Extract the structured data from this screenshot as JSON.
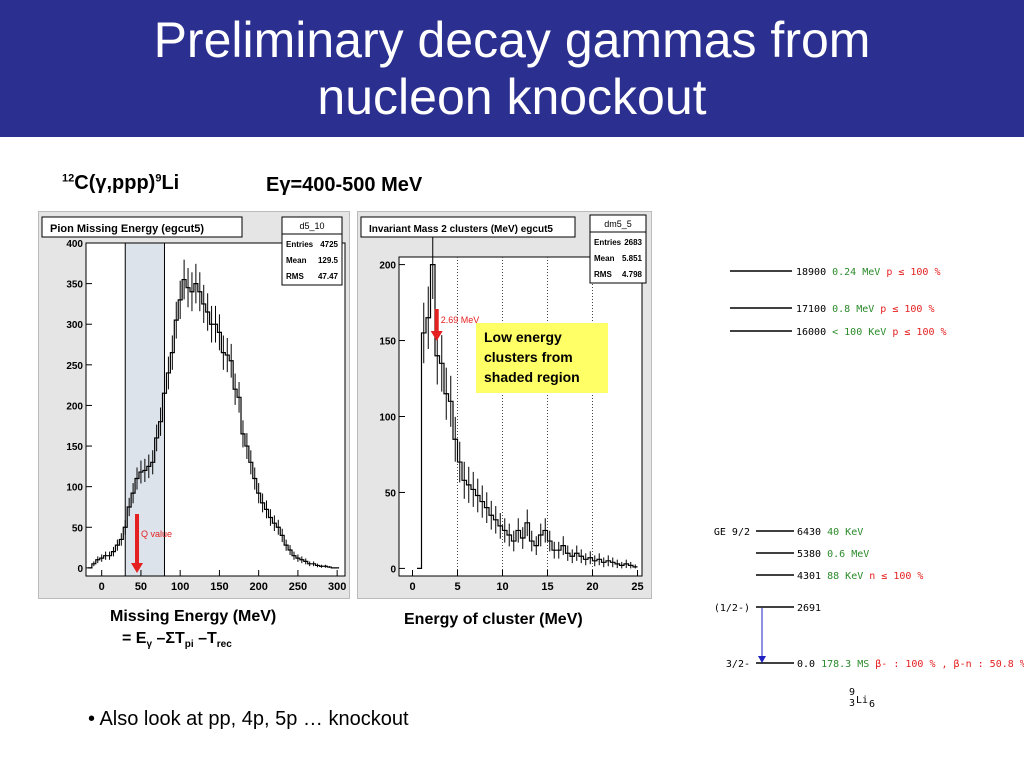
{
  "header": {
    "title_line1": "Preliminary decay gammas from",
    "title_line2": "nucleon knockout"
  },
  "reaction": {
    "sup1": "12",
    "text": "C(γ,ppp)",
    "sup2": "9",
    "text2": "Li"
  },
  "energy_range": "Eγ=400-500 MeV",
  "note_box": {
    "lines": [
      "Low energy",
      "clusters from",
      "shaded region"
    ]
  },
  "xlabel_left": {
    "line1": "Missing Energy (MeV)",
    "line2": "= Eγ –ΣTpi –Trec"
  },
  "xlabel_right": "Energy of cluster (MeV)",
  "bullet": "• Also look at pp, 4p, 5p … knockout",
  "colors": {
    "title_bg": "#2b2f8f",
    "arrow": "#e52020",
    "note_bg": "#ffff66",
    "green": "#2a8a2a",
    "red": "#e52020",
    "transition": "#2020c0"
  },
  "chart_data": [
    {
      "type": "line",
      "title": "Pion Missing Energy (egcut5)",
      "histogram_name": "d5_10",
      "stats": [
        {
          "k": "Entries",
          "v": "4725"
        },
        {
          "k": "Mean",
          "v": "129.5"
        },
        {
          "k": "RMS",
          "v": "47.47"
        }
      ],
      "xlim": [
        -20,
        310
      ],
      "ylim": [
        -10,
        400
      ],
      "xticks": [
        0,
        50,
        100,
        150,
        200,
        250,
        300
      ],
      "yticks": [
        0,
        50,
        100,
        150,
        200,
        250,
        300,
        350,
        400
      ],
      "shaded_region": [
        30,
        80
      ],
      "annotation": {
        "text": "Q value",
        "x": 45
      },
      "x": [
        -15,
        -10,
        -5,
        0,
        5,
        10,
        15,
        20,
        25,
        30,
        35,
        40,
        45,
        50,
        55,
        60,
        65,
        70,
        75,
        80,
        85,
        90,
        95,
        100,
        105,
        110,
        115,
        120,
        125,
        130,
        135,
        140,
        145,
        150,
        155,
        160,
        165,
        170,
        175,
        180,
        185,
        190,
        195,
        200,
        205,
        210,
        215,
        220,
        225,
        230,
        235,
        240,
        245,
        250,
        255,
        260,
        265,
        270,
        275,
        280,
        285,
        290,
        295,
        300
      ],
      "values": [
        0,
        5,
        10,
        12,
        15,
        15,
        20,
        28,
        35,
        50,
        75,
        92,
        110,
        118,
        120,
        125,
        130,
        160,
        180,
        215,
        240,
        265,
        305,
        330,
        355,
        345,
        340,
        350,
        340,
        325,
        315,
        300,
        300,
        290,
        265,
        262,
        255,
        220,
        210,
        165,
        150,
        130,
        110,
        92,
        80,
        72,
        62,
        55,
        50,
        40,
        28,
        22,
        15,
        12,
        10,
        8,
        5,
        5,
        3,
        2,
        2,
        1,
        0,
        0
      ]
    },
    {
      "type": "line",
      "title": "Invariant Mass 2 clusters (MeV) egcut5",
      "histogram_name": "dm5_5",
      "stats": [
        {
          "k": "Entries",
          "v": "2683"
        },
        {
          "k": "Mean",
          "v": "5.851"
        },
        {
          "k": "RMS",
          "v": "4.798"
        }
      ],
      "xlim": [
        -1.5,
        25.5
      ],
      "ylim": [
        -5,
        205
      ],
      "xticks": [
        0,
        5,
        10,
        15,
        20,
        25
      ],
      "yticks": [
        0,
        50,
        100,
        150,
        200
      ],
      "vlines": [
        5,
        10,
        15,
        20
      ],
      "annotation": {
        "text": "2.69 MeV",
        "x": 2.69
      },
      "x": [
        0.75,
        1.25,
        1.75,
        2.25,
        2.75,
        3.25,
        3.75,
        4.25,
        4.75,
        5.25,
        5.75,
        6.25,
        6.75,
        7.25,
        7.75,
        8.25,
        8.75,
        9.25,
        9.75,
        10.25,
        10.75,
        11.25,
        11.75,
        12.25,
        12.75,
        13.25,
        13.75,
        14.25,
        14.75,
        15.25,
        15.75,
        16.25,
        16.75,
        17.25,
        17.75,
        18.25,
        18.75,
        19.25,
        19.75,
        20.25,
        20.75,
        21.25,
        21.75,
        22.25,
        22.75,
        23.25,
        23.75,
        24.25,
        24.75
      ],
      "values": [
        0,
        155,
        165,
        200,
        140,
        135,
        115,
        110,
        85,
        70,
        58,
        55,
        52,
        48,
        44,
        40,
        35,
        32,
        28,
        25,
        22,
        18,
        25,
        20,
        30,
        18,
        15,
        22,
        25,
        18,
        12,
        12,
        15,
        10,
        8,
        10,
        8,
        6,
        7,
        5,
        6,
        4,
        5,
        4,
        3,
        2,
        3,
        2,
        1
      ]
    }
  ],
  "level_scheme": {
    "upper_levels": [
      {
        "energy": "18900",
        "width": "0.24 MeV",
        "mode": "p ≤ 100 %"
      },
      {
        "energy": "17100",
        "width": "0.8 MeV",
        "mode": "p ≤ 100 %"
      },
      {
        "energy": "16000",
        "width": "< 100 KeV",
        "mode": "p ≤ 100 %"
      }
    ],
    "lower_levels": [
      {
        "label": "GE 9/2",
        "energy": "6430",
        "width": "40 KeV",
        "mode": ""
      },
      {
        "label": "",
        "energy": "5380",
        "width": "0.6 MeV",
        "mode": ""
      },
      {
        "label": "",
        "energy": "4301",
        "width": "88 KeV",
        "mode": "n ≤ 100 %"
      },
      {
        "label": "(1/2-)",
        "energy": "2691",
        "width": "",
        "mode": ""
      },
      {
        "label": "3/2-",
        "energy": "0.0",
        "width": "178.3 MS",
        "mode": "β- : 100 % , β-n : 50.8 %"
      }
    ],
    "nucleus": {
      "mass": "9",
      "charge": "3",
      "symbol": "Li",
      "neutrons": "6"
    }
  }
}
